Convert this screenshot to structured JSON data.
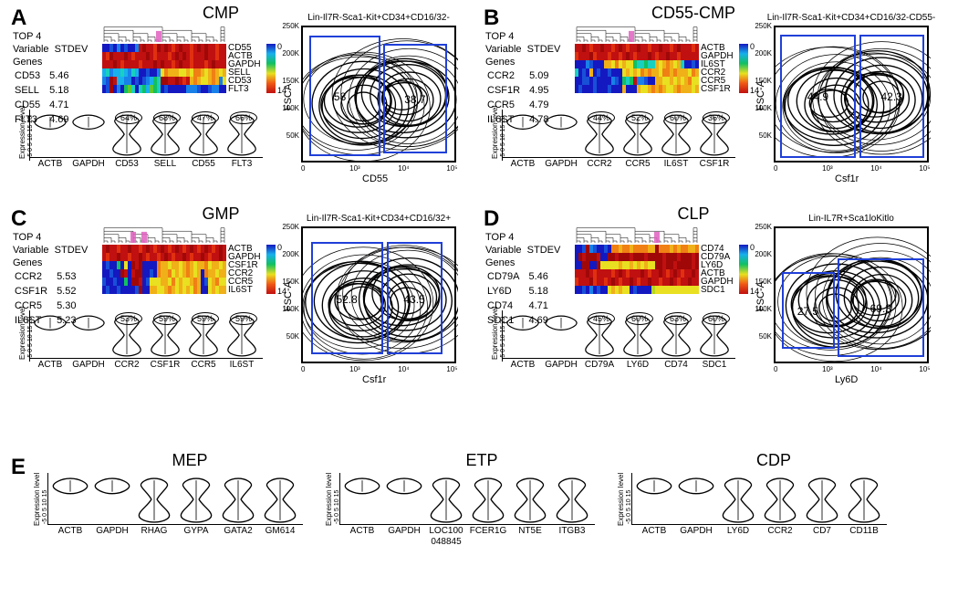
{
  "colors": {
    "gate_border": "#2040d8",
    "dendro_highlight": "#e060c0",
    "heatmap_stops": [
      "#1418c0",
      "#18b0ec",
      "#12c060",
      "#e8e020",
      "#f05814",
      "#c01010"
    ],
    "cb_min_label": "0",
    "cb_max_label": "14"
  },
  "typography": {
    "panel_label_pt": 24,
    "panel_title_pt": 18,
    "stats_pt": 11,
    "gene_label_pt": 10,
    "violin_label_pt": 10,
    "facs_title_pt": 10,
    "facs_value_pt": 12,
    "axis_label_pt": 11
  },
  "heatmap_palette_idx_to_hex": {
    "0": "#1418c0",
    "1": "#1850d8",
    "2": "#1880e8",
    "3": "#18b0ec",
    "4": "#18d0c0",
    "5": "#12c060",
    "6": "#60c830",
    "7": "#b8d820",
    "8": "#e8e020",
    "9": "#f0b018",
    "10": "#f08014",
    "11": "#f05814",
    "12": "#e03010",
    "13": "#c01010",
    "14": "#a00808"
  },
  "panelA": {
    "label": "A",
    "title": "CMP",
    "stats_hdr1": "TOP 4",
    "stats_hdr2": "Variable",
    "stats_hdr3": "Genes",
    "stats_col2": "STDEV",
    "rows": [
      {
        "g": "CD53",
        "v": "5.46"
      },
      {
        "g": "SELL",
        "v": "5.18"
      },
      {
        "g": "CD55",
        "v": "4.71"
      },
      {
        "g": "FLT3",
        "v": "4.69"
      }
    ],
    "hm_genes": [
      "CD55",
      "ACTB",
      "GAPDH",
      "SELL",
      "CD53",
      "FLT3"
    ],
    "hm_ncols": 34,
    "hm_rows": [
      [
        0,
        0,
        1,
        0,
        2,
        0,
        1,
        0,
        0,
        2,
        13,
        14,
        13,
        13,
        12,
        14,
        13,
        14,
        13,
        12,
        13,
        14,
        13,
        13,
        12,
        13,
        14,
        13,
        14,
        13,
        13,
        12,
        13,
        13
      ],
      [
        13,
        12,
        14,
        13,
        13,
        13,
        14,
        13,
        12,
        13,
        13,
        13,
        14,
        13,
        12,
        13,
        13,
        13,
        12,
        13,
        14,
        13,
        14,
        13,
        12,
        13,
        13,
        13,
        14,
        13,
        13,
        12,
        13,
        13
      ],
      [
        13,
        13,
        13,
        14,
        13,
        12,
        13,
        13,
        13,
        13,
        12,
        13,
        13,
        13,
        14,
        13,
        14,
        13,
        13,
        12,
        13,
        14,
        13,
        13,
        12,
        13,
        13,
        13,
        12,
        13,
        14,
        13,
        13,
        13
      ],
      [
        3,
        4,
        2,
        3,
        3,
        4,
        3,
        2,
        4,
        3,
        0,
        0,
        1,
        0,
        0,
        2,
        8,
        10,
        9,
        9,
        9,
        8,
        8,
        9,
        8,
        10,
        10,
        9,
        8,
        9,
        10,
        9,
        8,
        9
      ],
      [
        2,
        1,
        14,
        13,
        3,
        3,
        2,
        2,
        0,
        1,
        0,
        1,
        2,
        3,
        5,
        4,
        14,
        14,
        13,
        13,
        14,
        13,
        12,
        13,
        9,
        10,
        9,
        8,
        8,
        9,
        10,
        9,
        2,
        8
      ],
      [
        0,
        1,
        14,
        0,
        2,
        0,
        5,
        6,
        4,
        0,
        4,
        5,
        3,
        6,
        5,
        4,
        0,
        1,
        0,
        0,
        0,
        0,
        0,
        2,
        2,
        2,
        1,
        0,
        0,
        1,
        2,
        2,
        0,
        0
      ]
    ],
    "violins": [
      {
        "name": "ACTB",
        "pct": null,
        "shape": "uni"
      },
      {
        "name": "GAPDH",
        "pct": null,
        "shape": "uni"
      },
      {
        "name": "CD53",
        "pct": "64%",
        "shape": "bi"
      },
      {
        "name": "SELL",
        "pct": "68%",
        "shape": "bi"
      },
      {
        "name": "CD55",
        "pct": "47%",
        "shape": "bi"
      },
      {
        "name": "FLT3",
        "pct": "66%",
        "shape": "bi"
      }
    ],
    "facs": {
      "title": "Lin-Il7R-Sca1-Kit+CD34+CD16/32-",
      "ylab": "FSCA",
      "xlab": "CD55",
      "gates": [
        {
          "l": 0.04,
          "t": 0.06,
          "w": 0.46,
          "h": 0.88,
          "val": "58"
        },
        {
          "l": 0.52,
          "t": 0.12,
          "w": 0.41,
          "h": 0.8,
          "val": "38.7"
        }
      ],
      "yticks": [
        "50K",
        "100K",
        "150K",
        "200K",
        "250K"
      ],
      "xticks": [
        "0",
        "10³",
        "10⁴",
        "10⁵"
      ]
    }
  },
  "panelB": {
    "label": "B",
    "title": "CD55-CMP",
    "stats_hdr1": "TOP 4",
    "stats_hdr2": "Variable",
    "stats_hdr3": "Genes",
    "stats_col2": "STDEV",
    "rows": [
      {
        "g": "CCR2",
        "v": "5.09"
      },
      {
        "g": "CSF1R",
        "v": "4.95"
      },
      {
        "g": "CCR5",
        "v": "4.79"
      },
      {
        "g": "IL6ST",
        "v": "4.78"
      }
    ],
    "hm_genes": [
      "ACTB",
      "GAPDH",
      "IL6ST",
      "CCR2",
      "CCR5",
      "CSF1R"
    ],
    "hm_ncols": 34,
    "hm_rows": [
      [
        13,
        13,
        14,
        13,
        12,
        13,
        13,
        14,
        13,
        13,
        12,
        13,
        14,
        13,
        12,
        13,
        13,
        14,
        13,
        13,
        12,
        13,
        13,
        14,
        13,
        13,
        12,
        13,
        14,
        13,
        13,
        13,
        12,
        13
      ],
      [
        12,
        13,
        13,
        13,
        14,
        12,
        13,
        13,
        13,
        12,
        13,
        13,
        12,
        13,
        14,
        13,
        12,
        13,
        13,
        13,
        14,
        13,
        12,
        13,
        13,
        14,
        13,
        13,
        12,
        13,
        13,
        13,
        13,
        13
      ],
      [
        0,
        0,
        0,
        2,
        1,
        0,
        0,
        0,
        9,
        9,
        8,
        10,
        8,
        9,
        8,
        8,
        5,
        4,
        4,
        5,
        4,
        4,
        9,
        8,
        9,
        10,
        9,
        8,
        9,
        4,
        0,
        0,
        1,
        0
      ],
      [
        4,
        0,
        1,
        0,
        9,
        0,
        1,
        0,
        0,
        1,
        0,
        0,
        0,
        8,
        9,
        8,
        9,
        8,
        10,
        9,
        10,
        9,
        9,
        8,
        10,
        10,
        9,
        10,
        9,
        9,
        9,
        8,
        10,
        9
      ],
      [
        0,
        0,
        1,
        1,
        0,
        1,
        0,
        0,
        0,
        0,
        2,
        1,
        0,
        5,
        4,
        5,
        13,
        2,
        2,
        1,
        0,
        0,
        9,
        9,
        8,
        8,
        9,
        8,
        9,
        8,
        9,
        10,
        8,
        8
      ],
      [
        0,
        1,
        0,
        0,
        0,
        1,
        0,
        0,
        0,
        1,
        0,
        0,
        0,
        9,
        0,
        0,
        0,
        9,
        8,
        8,
        9,
        10,
        9,
        10,
        9,
        8,
        8,
        9,
        10,
        9,
        9,
        9,
        8,
        9
      ]
    ],
    "violins": [
      {
        "name": "ACTB",
        "pct": null,
        "shape": "uni"
      },
      {
        "name": "GAPDH",
        "pct": null,
        "shape": "uni"
      },
      {
        "name": "CCR2",
        "pct": "44%",
        "shape": "bi"
      },
      {
        "name": "CCR5",
        "pct": "52%",
        "shape": "bi"
      },
      {
        "name": "IL6ST",
        "pct": "60%",
        "shape": "bi"
      },
      {
        "name": "CSF1R",
        "pct": "36%",
        "shape": "bi"
      }
    ],
    "facs": {
      "title": "Lin-Il7R-Sca1-Kit+CD34+CD16/32-CD55-",
      "ylab": "FSC-A",
      "xlab": "Csf1r",
      "gates": [
        {
          "l": 0.03,
          "t": 0.05,
          "w": 0.49,
          "h": 0.9,
          "val": "44.9"
        },
        {
          "l": 0.54,
          "t": 0.05,
          "w": 0.42,
          "h": 0.9,
          "val": "42.3"
        }
      ],
      "yticks": [
        "50K",
        "100K",
        "150K",
        "200K",
        "250K"
      ],
      "xticks": [
        "0",
        "10³",
        "10⁴",
        "10⁵"
      ]
    }
  },
  "panelC": {
    "label": "C",
    "title": "GMP",
    "stats_hdr1": "TOP 4",
    "stats_hdr2": "Variable",
    "stats_hdr3": "Genes",
    "stats_col2": "STDEV",
    "rows": [
      {
        "g": "CCR2",
        "v": "5.53"
      },
      {
        "g": "CSF1R",
        "v": "5.52"
      },
      {
        "g": "CCR5",
        "v": "5.30"
      },
      {
        "g": "IL6ST",
        "v": "5.23"
      }
    ],
    "hm_genes": [
      "ACTB",
      "GAPDH",
      "CSF1R",
      "CCR2",
      "CCR5",
      "IL6ST"
    ],
    "hm_ncols": 34,
    "hm_rows": [
      [
        13,
        14,
        13,
        13,
        12,
        13,
        13,
        14,
        13,
        13,
        12,
        13,
        14,
        13,
        12,
        13,
        14,
        13,
        12,
        13,
        14,
        13,
        12,
        13,
        14,
        13,
        12,
        13,
        14,
        13,
        12,
        13,
        14,
        13
      ],
      [
        13,
        12,
        13,
        13,
        14,
        13,
        13,
        12,
        13,
        13,
        14,
        13,
        12,
        13,
        13,
        12,
        13,
        14,
        13,
        12,
        13,
        13,
        14,
        13,
        12,
        13,
        13,
        14,
        13,
        12,
        13,
        13,
        14,
        13
      ],
      [
        0,
        1,
        0,
        0,
        5,
        0,
        8,
        0,
        14,
        13,
        14,
        0,
        0,
        0,
        0,
        10,
        9,
        9,
        8,
        9,
        9,
        8,
        9,
        10,
        9,
        8,
        9,
        9,
        10,
        8,
        9,
        9,
        8,
        9
      ],
      [
        0,
        0,
        1,
        0,
        0,
        14,
        13,
        0,
        13,
        14,
        14,
        0,
        0,
        1,
        0,
        10,
        9,
        9,
        10,
        8,
        9,
        8,
        9,
        10,
        9,
        8,
        9,
        0,
        10,
        9,
        9,
        8,
        9,
        9
      ],
      [
        1,
        0,
        0,
        1,
        0,
        0,
        5,
        0,
        14,
        14,
        13,
        0,
        1,
        8,
        8,
        8,
        9,
        9,
        8,
        10,
        8,
        9,
        8,
        8,
        9,
        10,
        9,
        0,
        1,
        8,
        9,
        10,
        8,
        8
      ],
      [
        0,
        1,
        0,
        0,
        1,
        0,
        0,
        0,
        0,
        1,
        14,
        0,
        0,
        9,
        9,
        8,
        8,
        9,
        10,
        9,
        8,
        9,
        8,
        9,
        8,
        10,
        9,
        0,
        0,
        8,
        9,
        8,
        9,
        9
      ]
    ],
    "violins": [
      {
        "name": "ACTB",
        "pct": null,
        "shape": "uni"
      },
      {
        "name": "GAPDH",
        "pct": null,
        "shape": "uni"
      },
      {
        "name": "CCR2",
        "pct": "53%",
        "shape": "bi"
      },
      {
        "name": "CSF1R",
        "pct": "59%",
        "shape": "bi"
      },
      {
        "name": "CCR5",
        "pct": "59%",
        "shape": "bi"
      },
      {
        "name": "IL6ST",
        "pct": "59%",
        "shape": "bi"
      }
    ],
    "facs": {
      "title": "Lin-Il7R-Sca1-Kit+CD34+CD16/32+",
      "ylab": "FSC-A",
      "xlab": "Csf1r",
      "gates": [
        {
          "l": 0.05,
          "t": 0.1,
          "w": 0.47,
          "h": 0.82,
          "val": "52.8"
        },
        {
          "l": 0.54,
          "t": 0.1,
          "w": 0.36,
          "h": 0.82,
          "val": "43.5"
        }
      ],
      "yticks": [
        "50K",
        "100K",
        "150K",
        "200K",
        "250K"
      ],
      "xticks": [
        "0",
        "10³",
        "10⁴",
        "10⁵"
      ]
    }
  },
  "panelD": {
    "label": "D",
    "title": "CLP",
    "stats_hdr1": "TOP 4",
    "stats_hdr2": "Variable",
    "stats_hdr3": "Genes",
    "stats_col2": "STDEV",
    "rows": [
      {
        "g": "CD79A",
        "v": "5.46"
      },
      {
        "g": "LY6D",
        "v": "5.18"
      },
      {
        "g": "CD74",
        "v": "4.71"
      },
      {
        "g": "SDC1",
        "v": "4.69"
      }
    ],
    "hm_genes": [
      "CD74",
      "CD79A",
      "LY6D",
      "ACTB",
      "GAPDH",
      "SDC1"
    ],
    "hm_ncols": 34,
    "hm_rows": [
      [
        0,
        0,
        1,
        14,
        2,
        1,
        0,
        0,
        1,
        0,
        10,
        10,
        9,
        10,
        10,
        9,
        10,
        10,
        10,
        10,
        9,
        9,
        14,
        10,
        10,
        10,
        9,
        10,
        9,
        10,
        10,
        9,
        9,
        10
      ],
      [
        0,
        14,
        13,
        14,
        14,
        14,
        13,
        0,
        0,
        14,
        14,
        13,
        14,
        14,
        14,
        13,
        14,
        14,
        14,
        13,
        14,
        14,
        14,
        14,
        13,
        14,
        14,
        14,
        13,
        14,
        14,
        14,
        13,
        14
      ],
      [
        0,
        0,
        14,
        14,
        0,
        0,
        14,
        8,
        8,
        8,
        8,
        8,
        9,
        8,
        8,
        9,
        8,
        9,
        8,
        9,
        8,
        8,
        14,
        14,
        13,
        14,
        14,
        13,
        14,
        14,
        14,
        14,
        13,
        14
      ],
      [
        13,
        13,
        13,
        14,
        13,
        12,
        13,
        13,
        13,
        13,
        12,
        13,
        14,
        13,
        12,
        13,
        13,
        13,
        14,
        13,
        12,
        13,
        13,
        14,
        13,
        12,
        13,
        14,
        13,
        12,
        13,
        13,
        14,
        13
      ],
      [
        12,
        13,
        13,
        13,
        14,
        12,
        13,
        13,
        12,
        13,
        14,
        13,
        12,
        13,
        13,
        14,
        13,
        12,
        13,
        13,
        14,
        13,
        13,
        12,
        13,
        13,
        14,
        13,
        12,
        13,
        13,
        14,
        13,
        13
      ],
      [
        0,
        0,
        1,
        0,
        2,
        0,
        1,
        0,
        0,
        8,
        9,
        8,
        9,
        8,
        8,
        0,
        1,
        0,
        0,
        0,
        0,
        7,
        8,
        8,
        8,
        8,
        8,
        8,
        8,
        8,
        8,
        8,
        8,
        8
      ]
    ],
    "violins": [
      {
        "name": "ACTB",
        "pct": null,
        "shape": "uni"
      },
      {
        "name": "GAPDH",
        "pct": null,
        "shape": "uni"
      },
      {
        "name": "CD79A",
        "pct": "45%",
        "shape": "bi"
      },
      {
        "name": "LY6D",
        "pct": "60%",
        "shape": "bi"
      },
      {
        "name": "CD74",
        "pct": "63%",
        "shape": "bi"
      },
      {
        "name": "SDC1",
        "pct": "60%",
        "shape": "bi"
      }
    ],
    "facs": {
      "title": "Lin-IL7R+Sca1loKitlo",
      "ylab": "FSC-A",
      "xlab": "Ly6D",
      "gates": [
        {
          "l": 0.04,
          "t": 0.32,
          "w": 0.34,
          "h": 0.56,
          "val": "27.5"
        },
        {
          "l": 0.4,
          "t": 0.22,
          "w": 0.56,
          "h": 0.72,
          "val": "69.3"
        }
      ],
      "yticks": [
        "50K",
        "100K",
        "150K",
        "200K",
        "250K"
      ],
      "xticks": [
        "0",
        "10³",
        "10⁴",
        "10⁵"
      ]
    }
  },
  "panelE": {
    "label": "E",
    "groups": [
      {
        "title": "MEP",
        "violins": [
          {
            "name": "ACTB",
            "shape": "uni"
          },
          {
            "name": "GAPDH",
            "shape": "uni"
          },
          {
            "name": "RHAG",
            "shape": "bi"
          },
          {
            "name": "GYPA",
            "shape": "bi"
          },
          {
            "name": "GATA2",
            "shape": "bi"
          },
          {
            "name": "GM614",
            "shape": "bi"
          }
        ]
      },
      {
        "title": "ETP",
        "violins": [
          {
            "name": "ACTB",
            "shape": "uni"
          },
          {
            "name": "GAPDH",
            "shape": "uni"
          },
          {
            "name": "LOC100",
            "sub": "048845",
            "shape": "bi"
          },
          {
            "name": "FCER1G",
            "shape": "bi"
          },
          {
            "name": "NT5E",
            "shape": "bi"
          },
          {
            "name": "ITGB3",
            "shape": "bi"
          }
        ]
      },
      {
        "title": "CDP",
        "violins": [
          {
            "name": "ACTB",
            "shape": "uni"
          },
          {
            "name": "GAPDH",
            "shape": "uni"
          },
          {
            "name": "LY6D",
            "shape": "bi"
          },
          {
            "name": "CCR2",
            "shape": "bi"
          },
          {
            "name": "CD7",
            "shape": "bi"
          },
          {
            "name": "CD11B",
            "shape": "bi"
          }
        ]
      }
    ]
  },
  "ylab_expr": "Expression level",
  "ylab_ticks": "-5 0 5 10 15 20",
  "ylab_ticks_e": "-5 0 5 10 15"
}
